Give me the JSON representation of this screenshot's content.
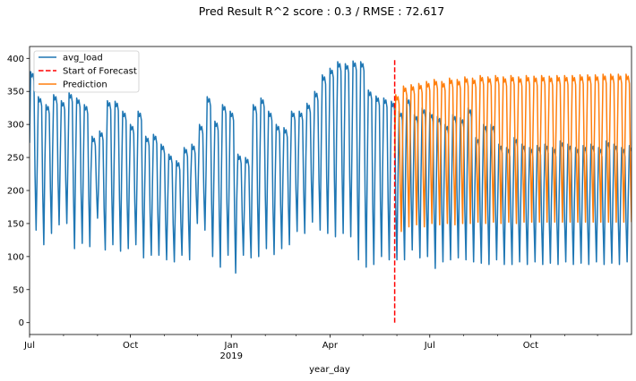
{
  "chart_data": {
    "type": "line",
    "title": "Pred Result R^2 score : 0.3   / RMSE :  72.617",
    "xlabel": "year_day",
    "ylabel": "",
    "ylim": [
      -18,
      418
    ],
    "xlim": [
      0,
      549
    ],
    "y_ticks": [
      0,
      50,
      100,
      150,
      200,
      250,
      300,
      350,
      400
    ],
    "x_ticks": [
      {
        "day": 0,
        "label": "Jul",
        "sub": ""
      },
      {
        "day": 92,
        "label": "Oct",
        "sub": ""
      },
      {
        "day": 184,
        "label": "Jan",
        "sub": "2019"
      },
      {
        "day": 274,
        "label": "Apr",
        "sub": ""
      },
      {
        "day": 365,
        "label": "Jul",
        "sub": ""
      },
      {
        "day": 457,
        "label": "Oct",
        "sub": ""
      }
    ],
    "x_minor_ticks": [
      31,
      62,
      123,
      153,
      215,
      243,
      304,
      335,
      396,
      427,
      488,
      518
    ],
    "forecast_start": {
      "day": 333,
      "y_range": [
        0,
        400
      ]
    },
    "legend_position": "upper-left",
    "series": [
      {
        "name": "avg_load",
        "color": "#1f77b4",
        "style": "solid",
        "start_day": 0,
        "weekly_highs": [
          380,
          342,
          330,
          345,
          336,
          348,
          340,
          330,
          282,
          290,
          336,
          335,
          320,
          300,
          320,
          282,
          285,
          270,
          255,
          245,
          265,
          270,
          300,
          342,
          305,
          330,
          320,
          255,
          250,
          330,
          340,
          320,
          300,
          295,
          320,
          320,
          332,
          350,
          375,
          385,
          395,
          392,
          396,
          395,
          352,
          343,
          340,
          335,
          320,
          340,
          315,
          325,
          318,
          312,
          300,
          315,
          310,
          325,
          280,
          300,
          300,
          270,
          265,
          280,
          270,
          265,
          268,
          270,
          265,
          275,
          270,
          265,
          268,
          270,
          265,
          275,
          270,
          265,
          268
        ],
        "weekly_lows": [
          140,
          118,
          135,
          148,
          150,
          112,
          120,
          115,
          158,
          110,
          118,
          108,
          112,
          118,
          98,
          102,
          102,
          95,
          92,
          102,
          95,
          150,
          140,
          100,
          84,
          102,
          75,
          102,
          98,
          100,
          112,
          103,
          112,
          118,
          138,
          135,
          152,
          140,
          135,
          130,
          135,
          130,
          95,
          84,
          88,
          100,
          95,
          95,
          95,
          110,
          98,
          100,
          82,
          92,
          95,
          98,
          95,
          92,
          90,
          88,
          95,
          88,
          88,
          92,
          88,
          92,
          88,
          90,
          88,
          92,
          88,
          90,
          88,
          92,
          88,
          90,
          88,
          92,
          88
        ]
      },
      {
        "name": "Start of Forecast",
        "color": "#ff0000",
        "style": "dashed"
      },
      {
        "name": "Prediction",
        "color": "#ff7f0e",
        "style": "solid",
        "start_day": 333,
        "weekly_highs": [
          345,
          358,
          360,
          362,
          365,
          368,
          365,
          370,
          368,
          372,
          370,
          374,
          372,
          374,
          372,
          374,
          372,
          374,
          373,
          374,
          373,
          374,
          374,
          374,
          375,
          375,
          375,
          376,
          376,
          376,
          376,
          376
        ],
        "weekly_lows": [
          138,
          145,
          148,
          145,
          150,
          148,
          150,
          148,
          150,
          150,
          152,
          150,
          152,
          150,
          152,
          150,
          152,
          152,
          152,
          152,
          152,
          152,
          152,
          152,
          152,
          152,
          152,
          152,
          152,
          152,
          152,
          152
        ]
      }
    ]
  }
}
